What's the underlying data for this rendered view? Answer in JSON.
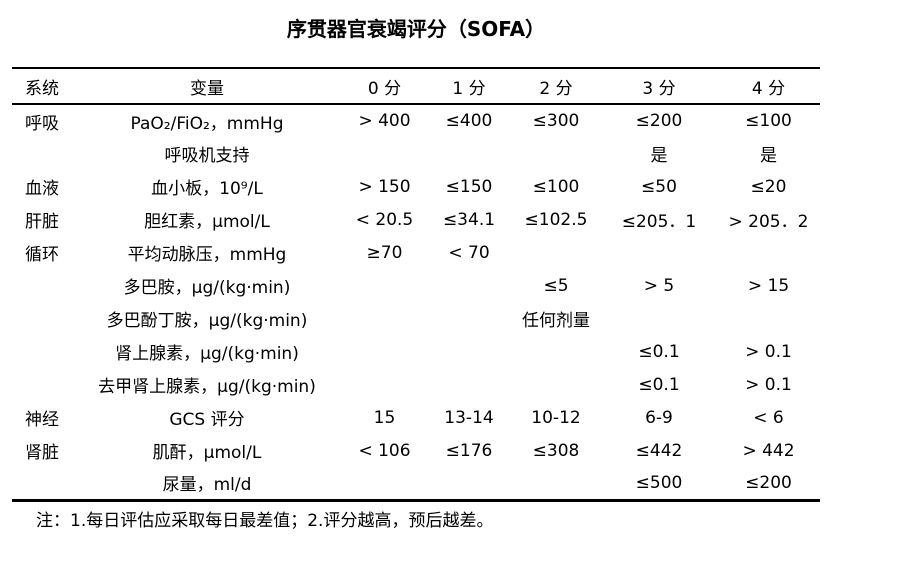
{
  "title": "序贯器官衰竭评分（SOFA）",
  "table": {
    "headers": [
      "系统",
      "变量",
      "0 分",
      "1 分",
      "2 分",
      "3 分",
      "4 分"
    ],
    "rows": [
      {
        "system": "呼吸",
        "variable": "PaO₂/FiO₂，mmHg",
        "scores": [
          "> 400",
          "≤400",
          "≤300",
          "≤200",
          "≤100"
        ]
      },
      {
        "system": "",
        "variable": "呼吸机支持",
        "scores": [
          "",
          "",
          "",
          "是",
          "是"
        ]
      },
      {
        "system": "血液",
        "variable": "血小板，10⁹/L",
        "scores": [
          "> 150",
          "≤150",
          "≤100",
          "≤50",
          "≤20"
        ]
      },
      {
        "system": "肝脏",
        "variable": "胆红素，μmol/L",
        "scores": [
          "< 20.5",
          "≤34.1",
          "≤102.5",
          "≤205．1",
          "> 205．2"
        ]
      },
      {
        "system": "循环",
        "variable": "平均动脉压，mmHg",
        "scores": [
          "≥70",
          "< 70",
          "",
          "",
          ""
        ]
      },
      {
        "system": "",
        "variable": "多巴胺，μg/(kg·min)",
        "scores": [
          "",
          "",
          "≤5",
          "> 5",
          "> 15"
        ]
      },
      {
        "system": "",
        "variable": "多巴酚丁胺，μg/(kg·min)",
        "scores": [
          "",
          "",
          "任何剂量",
          "",
          ""
        ]
      },
      {
        "system": "",
        "variable": "肾上腺素，μg/(kg·min)",
        "scores": [
          "",
          "",
          "",
          "≤0.1",
          "> 0.1"
        ]
      },
      {
        "system": "",
        "variable": "去甲肾上腺素，μg/(kg·min)",
        "scores": [
          "",
          "",
          "",
          "≤0.1",
          "> 0.1"
        ]
      },
      {
        "system": "神经",
        "variable": "GCS 评分",
        "scores": [
          "15",
          "13-14",
          "10-12",
          "6-9",
          "< 6"
        ]
      },
      {
        "system": "肾脏",
        "variable": "肌酐，μmol/L",
        "scores": [
          "< 106",
          "≤176",
          "≤308",
          "≤442",
          "> 442"
        ]
      },
      {
        "system": "",
        "variable": "尿量，ml/d",
        "scores": [
          "",
          "",
          "",
          "≤500",
          "≤200"
        ]
      }
    ],
    "note": "注：1.每日评估应采取每日最差值；2.评分越高，预后越差。"
  }
}
